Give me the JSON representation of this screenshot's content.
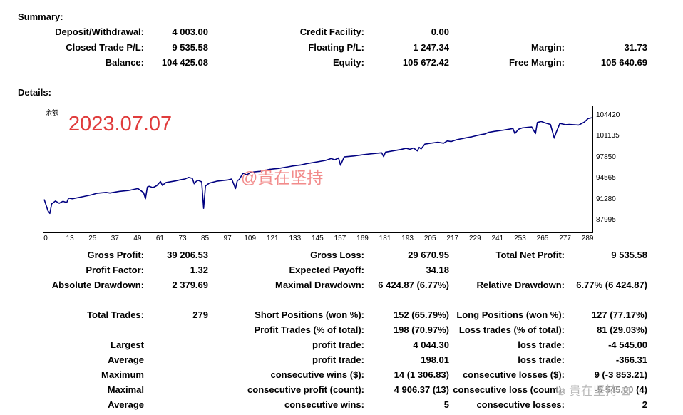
{
  "summary": {
    "title": "Summary:",
    "deposit_label": "Deposit/Withdrawal:",
    "deposit_value": "4 003.00",
    "credit_label": "Credit Facility:",
    "credit_value": "0.00",
    "closed_pl_label": "Closed Trade P/L:",
    "closed_pl_value": "9 535.58",
    "floating_pl_label": "Floating P/L:",
    "floating_pl_value": "1 247.34",
    "margin_label": "Margin:",
    "margin_value": "31.73",
    "balance_label": "Balance:",
    "balance_value": "104 425.08",
    "equity_label": "Equity:",
    "equity_value": "105 672.42",
    "free_margin_label": "Free Margin:",
    "free_margin_value": "105 640.69"
  },
  "details": {
    "title": "Details:"
  },
  "chart": {
    "name": "余额",
    "overlay_date": "2023.07.07",
    "overlay_handle": "@貴在坚持",
    "line_color": "#000080"
  },
  "chart_data": {
    "type": "line",
    "title": "",
    "xlabel": "",
    "ylabel": "",
    "x_ticks": [
      "0",
      "13",
      "25",
      "37",
      "49",
      "61",
      "73",
      "85",
      "97",
      "109",
      "121",
      "133",
      "145",
      "157",
      "169",
      "181",
      "193",
      "205",
      "217",
      "229",
      "241",
      "253",
      "265",
      "277",
      "289"
    ],
    "y_ticks": [
      "104420",
      "101135",
      "97850",
      "94565",
      "91280",
      "87995"
    ],
    "xlim": [
      0,
      292
    ],
    "ylim": [
      87995,
      104420
    ],
    "series": [
      {
        "x": [
          0,
          2,
          3,
          4,
          6,
          8,
          10,
          12,
          13,
          15,
          20,
          25,
          28,
          33,
          35,
          40,
          45,
          50,
          53,
          54,
          55,
          56,
          58,
          60,
          62,
          63,
          65,
          70,
          73,
          75,
          77,
          79,
          80,
          81,
          82,
          84,
          85,
          86,
          88,
          90,
          92,
          95,
          98,
          100,
          102,
          103,
          104,
          106,
          108,
          110,
          112,
          115,
          120,
          125,
          130,
          133,
          137,
          140,
          145,
          150,
          153,
          155,
          157,
          158,
          160,
          165,
          170,
          175,
          180,
          181,
          182,
          185,
          190,
          193,
          195,
          197,
          199,
          200,
          201,
          203,
          205,
          210,
          213,
          215,
          217,
          220,
          225,
          228,
          230,
          233,
          235,
          237,
          240,
          245,
          250,
          251,
          253,
          255,
          258,
          260,
          262,
          263,
          265,
          268,
          270,
          272,
          273,
          275,
          278,
          280,
          285,
          288,
          290,
          292
        ],
        "y": [
          91500,
          89700,
          89300,
          90800,
          91250,
          90900,
          91200,
          91000,
          91700,
          91600,
          91900,
          92200,
          92450,
          92600,
          92500,
          92750,
          92900,
          93200,
          92550,
          91600,
          93450,
          93550,
          93350,
          93650,
          94300,
          93700,
          94150,
          94400,
          94600,
          94700,
          94950,
          94800,
          93950,
          94300,
          94500,
          94250,
          90100,
          93600,
          94050,
          94200,
          94350,
          94450,
          94550,
          94700,
          93200,
          94450,
          94600,
          95600,
          95350,
          95700,
          95800,
          95900,
          96200,
          96350,
          96600,
          96750,
          96900,
          97100,
          97350,
          97600,
          97900,
          97700,
          98000,
          96850,
          98150,
          98300,
          98500,
          98650,
          98800,
          98200,
          98900,
          99050,
          99300,
          99500,
          99350,
          99550,
          99100,
          99650,
          99400,
          100150,
          100250,
          100450,
          100300,
          100650,
          100550,
          100850,
          101150,
          101300,
          101450,
          101650,
          101750,
          102000,
          102150,
          102350,
          102600,
          101800,
          102500,
          102700,
          102800,
          102850,
          101800,
          103550,
          103700,
          103400,
          103250,
          101100,
          101950,
          103400,
          103200,
          103250,
          103150,
          103600,
          104150,
          104300
        ]
      }
    ]
  }
}
